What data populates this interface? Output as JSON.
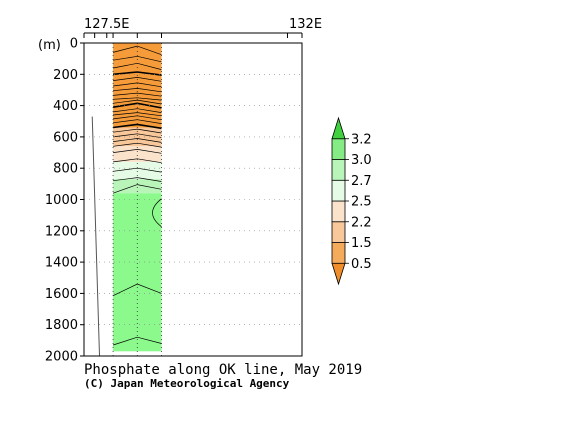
{
  "chart_data": {
    "type": "heatmap",
    "title": "Phosphate along OK line, May 2019",
    "credit": "(C) Japan Meteorological Agency",
    "ylabel": "(m)",
    "x_tick_labels": [
      "127.5E",
      "132E"
    ],
    "y_ticks": [
      0,
      200,
      400,
      600,
      800,
      1000,
      1200,
      1400,
      1600,
      1800,
      2000
    ],
    "ylim": [
      0,
      2000
    ],
    "xlim": [
      127.5,
      132
    ],
    "data_x_range": [
      128.1,
      129.1
    ],
    "stations_x": [
      128.1,
      128.6,
      129.1
    ],
    "colorbar": {
      "labels": [
        "0.5",
        "1.5",
        "2.2",
        "2.5",
        "2.7",
        "3.0",
        "3.2"
      ],
      "colors": [
        "#f08f2a",
        "#f5ab5c",
        "#f8c79a",
        "#fbe2cb",
        "#e6fbe6",
        "#b9f5b9",
        "#85ec85",
        "#40d040"
      ]
    },
    "bands": [
      {
        "top": 0,
        "bottom": 540,
        "color": "#f59b3a"
      },
      {
        "top": 540,
        "bottom": 660,
        "color": "#f8c79a"
      },
      {
        "top": 660,
        "bottom": 760,
        "color": "#fbe2cb"
      },
      {
        "top": 760,
        "bottom": 870,
        "color": "#e6fbe6"
      },
      {
        "top": 870,
        "bottom": 960,
        "color": "#b9f5b9"
      },
      {
        "top": 960,
        "bottom": 1970,
        "color": "#8bf98b"
      }
    ],
    "contours": [
      {
        "d": [
          60,
          20,
          75
        ],
        "bold": false
      },
      {
        "d": [
          110,
          85,
          120
        ],
        "bold": false
      },
      {
        "d": [
          160,
          130,
          170
        ],
        "bold": false
      },
      {
        "d": [
          200,
          185,
          205
        ],
        "bold": true
      },
      {
        "d": [
          240,
          220,
          245
        ],
        "bold": false
      },
      {
        "d": [
          275,
          255,
          280
        ],
        "bold": false
      },
      {
        "d": [
          305,
          290,
          312
        ],
        "bold": false
      },
      {
        "d": [
          335,
          320,
          340
        ],
        "bold": false
      },
      {
        "d": [
          360,
          350,
          365
        ],
        "bold": false
      },
      {
        "d": [
          385,
          365,
          390
        ],
        "bold": false
      },
      {
        "d": [
          410,
          385,
          415
        ],
        "bold": true
      },
      {
        "d": [
          440,
          420,
          445
        ],
        "bold": false
      },
      {
        "d": [
          460,
          445,
          465
        ],
        "bold": false
      },
      {
        "d": [
          485,
          465,
          490
        ],
        "bold": false
      },
      {
        "d": [
          510,
          490,
          515
        ],
        "bold": false
      },
      {
        "d": [
          540,
          520,
          545
        ],
        "bold": true
      },
      {
        "d": [
          570,
          550,
          575
        ],
        "bold": false
      },
      {
        "d": [
          600,
          580,
          605
        ],
        "bold": false
      },
      {
        "d": [
          630,
          610,
          635
        ],
        "bold": false
      },
      {
        "d": [
          660,
          640,
          665
        ],
        "bold": false
      },
      {
        "d": [
          700,
          680,
          705
        ],
        "bold": false
      },
      {
        "d": [
          760,
          740,
          765
        ],
        "bold": false
      },
      {
        "d": [
          820,
          800,
          825
        ],
        "bold": false
      },
      {
        "d": [
          880,
          860,
          885
        ],
        "bold": false
      },
      {
        "d": [
          960,
          905,
          935
        ],
        "bold": false
      },
      {
        "d": [
          1615,
          1540,
          1600
        ],
        "bold": false
      },
      {
        "d": [
          1930,
          1880,
          1920
        ],
        "bold": false
      }
    ],
    "bottom_line": {
      "x": [
        127.67,
        127.82
      ],
      "depth": [
        470,
        2000
      ]
    }
  }
}
